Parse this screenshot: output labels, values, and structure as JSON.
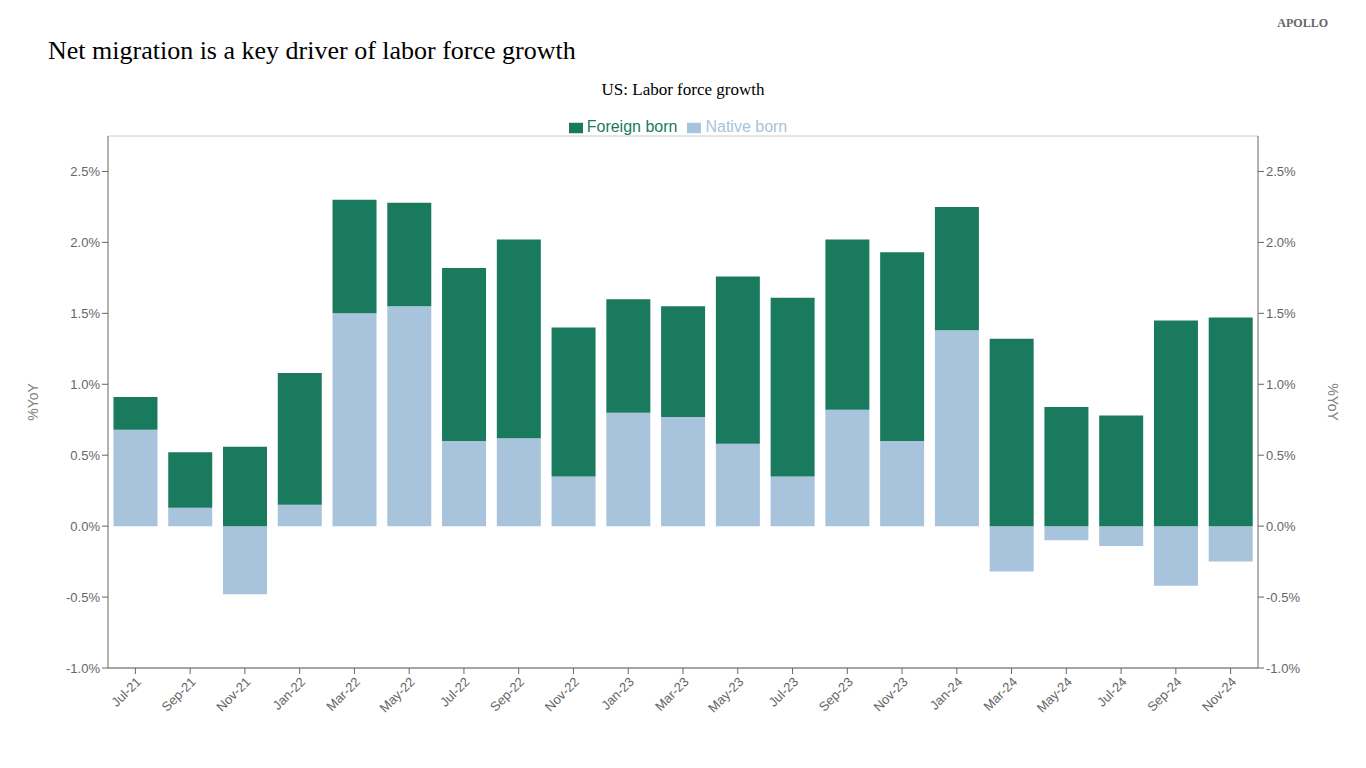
{
  "chart_data": {
    "type": "bar",
    "stacked": true,
    "title": "Net migration is a key driver of labor force growth",
    "subtitle": "US: Labor force growth",
    "annotations": [
      "APOLLO"
    ],
    "ylabel": "%YoY",
    "y2label": "%YoY",
    "categories": [
      "Jul-21",
      "Sep-21",
      "Nov-21",
      "Jan-22",
      "Mar-22",
      "May-22",
      "Jul-22",
      "Sep-22",
      "Nov-22",
      "Jan-23",
      "Mar-23",
      "May-23",
      "Jul-23",
      "Sep-23",
      "Nov-23",
      "Jan-24",
      "Mar-24",
      "May-24",
      "Jul-24",
      "Sep-24",
      "Nov-24"
    ],
    "series": [
      {
        "name": "Native born",
        "color": "#a8c4dc",
        "values": [
          0.68,
          0.13,
          -0.48,
          0.15,
          1.5,
          1.55,
          0.6,
          0.62,
          0.35,
          0.8,
          0.77,
          0.58,
          0.35,
          0.82,
          0.6,
          1.38,
          -0.32,
          -0.1,
          -0.14,
          -0.42,
          -0.25
        ]
      },
      {
        "name": "Foreign born",
        "color": "#1a7a5e",
        "values": [
          0.23,
          0.39,
          0.56,
          0.93,
          0.8,
          0.73,
          1.22,
          1.4,
          1.05,
          0.8,
          0.78,
          1.18,
          1.26,
          1.2,
          1.33,
          0.87,
          1.32,
          0.84,
          0.78,
          1.45,
          1.47
        ]
      }
    ],
    "ylim": [
      -1.0,
      2.75
    ],
    "yticks": [
      {
        "value": -1.0,
        "label": "-1.0%"
      },
      {
        "value": -0.5,
        "label": "-0.5%"
      },
      {
        "value": 0.0,
        "label": "0.0%"
      },
      {
        "value": 0.5,
        "label": "0.5%"
      },
      {
        "value": 1.0,
        "label": "1.0%"
      },
      {
        "value": 1.5,
        "label": "1.5%"
      },
      {
        "value": 2.0,
        "label": "2.0%"
      },
      {
        "value": 2.5,
        "label": "2.5%"
      }
    ],
    "y2lim": [
      -1.0,
      2.75
    ],
    "y2ticks": [
      {
        "value": -1.0,
        "label": "-1.0%"
      },
      {
        "value": -0.5,
        "label": "-0.5%"
      },
      {
        "value": 0.0,
        "label": "0.0%"
      },
      {
        "value": 0.5,
        "label": "0.5%"
      },
      {
        "value": 1.0,
        "label": "1.0%"
      },
      {
        "value": 1.5,
        "label": "1.5%"
      },
      {
        "value": 2.0,
        "label": "2.0%"
      },
      {
        "value": 2.5,
        "label": "2.5%"
      }
    ],
    "grid": true,
    "legend": "top"
  }
}
